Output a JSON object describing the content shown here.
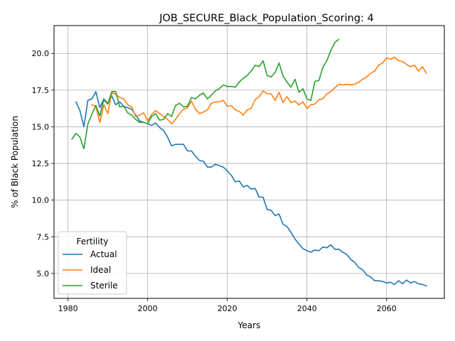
{
  "chart_data": {
    "type": "line",
    "title": "JOB_SECURE_Black_Population_Scoring: 4",
    "xlabel": "Years",
    "ylabel": "% of Black Population",
    "xlim": [
      1976.5,
      2074.5
    ],
    "ylim": [
      3.3,
      21.9
    ],
    "xticks": [
      1980,
      2000,
      2020,
      2040,
      2060
    ],
    "xtick_labels": [
      "1980",
      "2000",
      "2020",
      "2040",
      "2060"
    ],
    "yticks": [
      5.0,
      7.5,
      10.0,
      12.5,
      15.0,
      17.5,
      20.0
    ],
    "ytick_labels": [
      "5.0",
      "7.5",
      "10.0",
      "12.5",
      "15.0",
      "17.5",
      "20.0"
    ],
    "grid": true,
    "legend": {
      "title": "Fertility",
      "position": "lower-left"
    },
    "series": [
      {
        "name": "Actual",
        "color": "#1f77b4",
        "x": [
          1982,
          1983,
          1984,
          1985,
          1986,
          1987,
          1988,
          1989,
          1990,
          1991,
          1992,
          1993,
          1994,
          1995,
          1996,
          1997,
          1998,
          1999,
          2000,
          2001,
          2002,
          2003,
          2004,
          2005,
          2006,
          2007,
          2008,
          2009,
          2010,
          2011,
          2012,
          2013,
          2014,
          2015,
          2016,
          2017,
          2018,
          2019,
          2020,
          2021,
          2022,
          2023,
          2024,
          2025,
          2026,
          2027,
          2028,
          2029,
          2030,
          2031,
          2032,
          2033,
          2034,
          2035,
          2036,
          2037,
          2038,
          2039,
          2040,
          2041,
          2042,
          2043,
          2044,
          2045,
          2046,
          2047,
          2048,
          2049,
          2050,
          2051,
          2052,
          2053,
          2054,
          2055,
          2056,
          2057,
          2058,
          2059,
          2060,
          2061,
          2062,
          2063,
          2064,
          2065,
          2066,
          2067,
          2068,
          2069,
          2070
        ],
        "y": [
          16.7,
          16.1,
          15.0,
          16.8,
          16.9,
          17.4,
          16.3,
          16.9,
          16.6,
          17.1,
          16.5,
          16.7,
          16.4,
          16.3,
          16.2,
          15.8,
          15.4,
          15.3,
          15.2,
          15.1,
          15.25,
          14.95,
          14.75,
          14.3,
          13.7,
          13.8,
          13.8,
          13.8,
          13.35,
          13.35,
          13.0,
          12.7,
          12.65,
          12.25,
          12.25,
          12.45,
          12.35,
          12.25,
          12.0,
          11.7,
          11.25,
          11.3,
          10.9,
          11.0,
          10.75,
          10.8,
          10.2,
          10.2,
          9.35,
          9.3,
          8.95,
          9.05,
          8.35,
          8.2,
          7.8,
          7.35,
          7.0,
          6.7,
          6.55,
          6.45,
          6.6,
          6.55,
          6.8,
          6.75,
          6.95,
          6.65,
          6.65,
          6.45,
          6.3,
          5.95,
          5.75,
          5.4,
          5.25,
          4.9,
          4.75,
          4.5,
          4.5,
          4.45,
          4.35,
          4.4,
          4.25,
          4.5,
          4.3,
          4.55,
          4.35,
          4.45,
          4.3,
          4.25,
          4.15
        ]
      },
      {
        "name": "Ideal",
        "color": "#ff7f0e",
        "x": [
          1986,
          1987,
          1988,
          1989,
          1990,
          1991,
          1992,
          1993,
          1994,
          1995,
          1996,
          1997,
          1998,
          1999,
          2000,
          2001,
          2002,
          2003,
          2004,
          2005,
          2006,
          2007,
          2008,
          2009,
          2010,
          2011,
          2012,
          2013,
          2014,
          2015,
          2016,
          2017,
          2018,
          2019,
          2020,
          2021,
          2022,
          2023,
          2024,
          2025,
          2026,
          2027,
          2028,
          2029,
          2030,
          2031,
          2032,
          2033,
          2034,
          2035,
          2036,
          2037,
          2038,
          2039,
          2040,
          2041,
          2042,
          2043,
          2044,
          2045,
          2046,
          2047,
          2048,
          2049,
          2050,
          2051,
          2052,
          2053,
          2054,
          2055,
          2056,
          2057,
          2058,
          2059,
          2060,
          2061,
          2062,
          2063,
          2064,
          2065,
          2066,
          2067,
          2068,
          2069,
          2070
        ],
        "y": [
          16.5,
          16.4,
          15.3,
          16.5,
          15.9,
          17.35,
          17.2,
          17.0,
          16.9,
          16.5,
          16.35,
          15.7,
          15.8,
          15.95,
          15.4,
          15.85,
          16.1,
          15.9,
          15.7,
          15.5,
          15.2,
          15.5,
          15.9,
          16.2,
          16.3,
          16.75,
          16.2,
          15.9,
          16.0,
          16.15,
          16.6,
          16.7,
          16.7,
          16.8,
          16.4,
          16.45,
          16.15,
          16.05,
          15.8,
          16.15,
          16.25,
          16.85,
          17.05,
          17.45,
          17.25,
          17.25,
          16.8,
          17.35,
          16.65,
          17.05,
          16.65,
          16.75,
          16.5,
          16.7,
          16.25,
          16.5,
          16.55,
          16.85,
          16.9,
          17.25,
          17.4,
          17.65,
          17.9,
          17.85,
          17.9,
          17.85,
          17.9,
          18.05,
          18.25,
          18.4,
          18.65,
          18.8,
          19.2,
          19.35,
          19.7,
          19.6,
          19.75,
          19.5,
          19.45,
          19.25,
          19.1,
          19.2,
          18.8,
          19.1,
          18.65
        ]
      },
      {
        "name": "Sterile",
        "color": "#2ca02c",
        "x": [
          1981,
          1982,
          1983,
          1984,
          1985,
          1986,
          1987,
          1988,
          1989,
          1990,
          1991,
          1992,
          1993,
          1994,
          1995,
          1996,
          1997,
          1998,
          1999,
          2000,
          2001,
          2002,
          2003,
          2004,
          2005,
          2006,
          2007,
          2008,
          2009,
          2010,
          2011,
          2012,
          2013,
          2014,
          2015,
          2016,
          2017,
          2018,
          2019,
          2020,
          2021,
          2022,
          2023,
          2024,
          2025,
          2026,
          2027,
          2028,
          2029,
          2030,
          2031,
          2032,
          2033,
          2034,
          2035,
          2036,
          2037,
          2038,
          2039,
          2040,
          2041,
          2042,
          2043,
          2044,
          2045,
          2046,
          2047,
          2048
        ],
        "y": [
          14.15,
          14.55,
          14.3,
          13.5,
          15.2,
          15.85,
          16.45,
          15.75,
          16.85,
          16.55,
          17.4,
          17.4,
          16.35,
          16.4,
          15.95,
          15.8,
          15.5,
          15.3,
          15.3,
          15.2,
          15.7,
          15.9,
          15.45,
          15.5,
          15.9,
          15.7,
          16.45,
          16.6,
          16.35,
          16.4,
          17.0,
          16.9,
          17.15,
          17.3,
          16.9,
          17.15,
          17.45,
          17.6,
          17.85,
          17.75,
          17.75,
          17.7,
          18.05,
          18.3,
          18.5,
          18.8,
          19.2,
          19.1,
          19.5,
          18.5,
          18.4,
          18.7,
          19.35,
          18.45,
          18.05,
          17.7,
          18.25,
          17.35,
          17.6,
          16.9,
          16.8,
          18.1,
          18.15,
          19.05,
          19.5,
          20.2,
          20.75,
          20.95
        ]
      }
    ]
  }
}
